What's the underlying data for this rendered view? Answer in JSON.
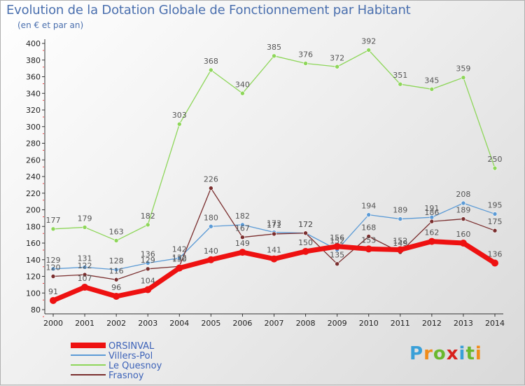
{
  "title": "Evolution de la Dotation Globale de Fonctionnement par Habitant",
  "subtitle": "(en € et par an)",
  "logo": {
    "text": "Proxiti",
    "colors": [
      "#3aa0d8",
      "#f08c1a",
      "#6ab82e",
      "#d8201c",
      "#3aa0d8",
      "#6ab82e",
      "#f08c1a"
    ]
  },
  "chart_data": {
    "type": "line",
    "title": "Evolution de la Dotation Globale de Fonctionnement par Habitant",
    "subtitle": "(en € et par an)",
    "xlabel": "",
    "ylabel": "",
    "x": [
      "2000",
      "2001",
      "2002",
      "2003",
      "2004",
      "2005",
      "2006",
      "2007",
      "2008",
      "2009",
      "2010",
      "2011",
      "2012",
      "2013",
      "2014"
    ],
    "ylim": [
      80,
      400
    ],
    "yticks": [
      80,
      100,
      120,
      140,
      160,
      180,
      200,
      220,
      240,
      260,
      280,
      300,
      320,
      340,
      360,
      380,
      400
    ],
    "grid": false,
    "legend_position": "bottom-left",
    "series": [
      {
        "name": "ORSINVAL",
        "color": "#ee1111",
        "emphasis": true,
        "values": [
          91,
          107,
          96,
          104,
          130,
          140,
          149,
          141,
          150,
          156,
          153,
          152,
          162,
          160,
          136
        ]
      },
      {
        "name": "Villers-Pol",
        "color": "#5c9bd6",
        "values": [
          129,
          131,
          128,
          136,
          142,
          180,
          182,
          173,
          172,
          152,
          194,
          189,
          191,
          208,
          195
        ]
      },
      {
        "name": "Le Quesnoy",
        "color": "#8ed65a",
        "values": [
          177,
          179,
          163,
          182,
          303,
          368,
          340,
          385,
          376,
          372,
          392,
          351,
          345,
          359,
          250
        ]
      },
      {
        "name": "Frasnoy",
        "color": "#7a2e2e",
        "values": [
          120,
          122,
          116,
          129,
          132,
          226,
          167,
          171,
          172,
          135,
          168,
          149,
          186,
          189,
          175
        ]
      }
    ]
  }
}
